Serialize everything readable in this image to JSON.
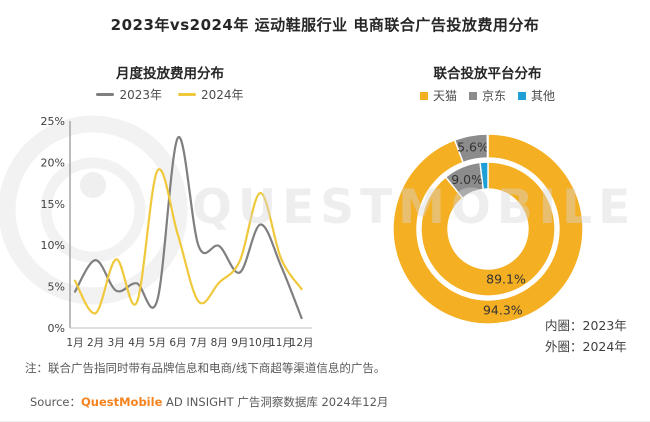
{
  "title": "2023年vs2024年 运动鞋服行业 电商联合广告投放费用分布",
  "note": "注：联合广告指同时带有品牌信息和电商/线下商超等渠道信息的广告。",
  "source": {
    "prefix": "Source：",
    "brand": "QuestMobile",
    "suffix": " AD INSIGHT 广告洞察数据库 2024年12月",
    "brand_color": "#F5831F"
  },
  "watermark": {
    "text": "QUESTMOBILE"
  },
  "left_panel": {
    "title": "月度投放费用分布",
    "legend": [
      {
        "label": "2023年",
        "color": "#7F7F7F"
      },
      {
        "label": "2024年",
        "color": "#F0C83C"
      }
    ]
  },
  "right_panel": {
    "title": "联合投放平台分布",
    "legend": [
      {
        "label": "天猫",
        "color": "#F5AF23"
      },
      {
        "label": "京东",
        "color": "#8C8C8C"
      },
      {
        "label": "其他",
        "color": "#1EA0D7"
      }
    ],
    "ring_captions": [
      "内圈：2023年",
      "外圈：2024年"
    ]
  },
  "colors": {
    "axis_y": "#999999",
    "axis_x": "#cccccc",
    "tick_text": "#404040",
    "donut_label": "#333333"
  },
  "chart_data": [
    {
      "type": "line",
      "title": "月度投放费用分布",
      "categories": [
        "1月",
        "2月",
        "3月",
        "4月",
        "5月",
        "6月",
        "7月",
        "8月",
        "9月",
        "10月",
        "11月",
        "12月"
      ],
      "ylim": [
        0,
        25
      ],
      "ytick_step": 5,
      "ytick_suffix": "%",
      "grid": false,
      "legend_position": "top",
      "series": [
        {
          "name": "2023年",
          "color": "#7F7F7F",
          "values": [
            4.4,
            8.2,
            4.5,
            5.4,
            3.4,
            23.0,
            9.9,
            9.9,
            6.7,
            12.5,
            7.5,
            1.2
          ]
        },
        {
          "name": "2024年",
          "color": "#F0C83C",
          "values": [
            5.7,
            1.8,
            8.3,
            3.1,
            19.0,
            11.2,
            3.2,
            5.5,
            8.1,
            16.3,
            8.4,
            4.7
          ]
        }
      ]
    },
    {
      "type": "pie",
      "subtype": "nested-donut",
      "title": "联合投放平台分布",
      "rings": [
        {
          "name": "2023年",
          "position": "inner",
          "r_inner": 40,
          "r_outer": 67,
          "segments": [
            {
              "label": "天猫",
              "value": 89.1,
              "color": "#F5AF23",
              "show_label": true
            },
            {
              "label": "京东",
              "value": 9.0,
              "color": "#8C8C8C",
              "show_label": true
            },
            {
              "label": "其他",
              "value": 1.9,
              "color": "#1EA0D7",
              "show_label": false
            }
          ]
        },
        {
          "name": "2024年",
          "position": "outer",
          "r_inner": 71,
          "r_outer": 95,
          "segments": [
            {
              "label": "天猫",
              "value": 94.3,
              "color": "#F5AF23",
              "show_label": true
            },
            {
              "label": "京东",
              "value": 5.6,
              "color": "#8C8C8C",
              "show_label": true
            },
            {
              "label": "其他",
              "value": 0.1,
              "color": "#1EA0D7",
              "show_label": false
            }
          ]
        }
      ]
    }
  ]
}
